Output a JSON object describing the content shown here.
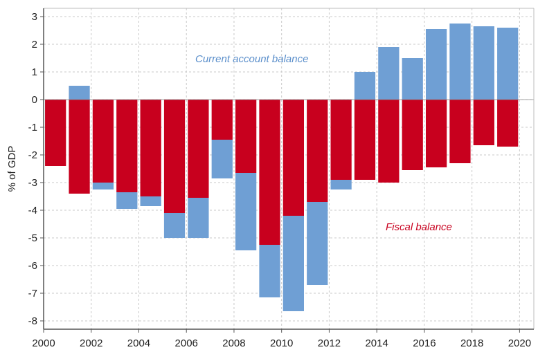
{
  "chart_data": {
    "type": "bar",
    "stacked": true,
    "x": [
      2000,
      2001,
      2002,
      2003,
      2004,
      2005,
      2006,
      2007,
      2008,
      2009,
      2010,
      2011,
      2012,
      2013,
      2014,
      2015,
      2016,
      2017,
      2018,
      2019
    ],
    "series": [
      {
        "name": "Fiscal balance",
        "color": "#c8001e",
        "values": [
          -2.4,
          -3.4,
          -3.0,
          -3.35,
          -3.5,
          -4.1,
          -3.55,
          -1.45,
          -2.65,
          -5.25,
          -4.2,
          -3.7,
          -2.9,
          -2.9,
          -3.0,
          -2.55,
          -2.45,
          -2.3,
          -1.65,
          -1.7
        ]
      },
      {
        "name": "Current account balance",
        "color": "#6f9fd4",
        "values": [
          0.0,
          0.5,
          -0.25,
          -0.6,
          -0.35,
          -0.9,
          -1.45,
          -1.4,
          -2.8,
          -1.9,
          -3.45,
          -3.0,
          -0.35,
          1.0,
          1.9,
          1.5,
          2.55,
          2.75,
          2.65,
          2.6
        ]
      }
    ],
    "xlabel": "",
    "ylabel": "% of GDP",
    "ylim": [
      -8.3,
      3.3
    ],
    "xlim": [
      2000,
      2020.6
    ],
    "yticks": [
      3,
      2,
      1,
      0,
      -1,
      -2,
      -3,
      -4,
      -5,
      -6,
      -7,
      -8
    ],
    "xticks": [
      2000,
      2002,
      2004,
      2006,
      2008,
      2010,
      2012,
      2014,
      2016,
      2018,
      2020
    ],
    "grid": true,
    "legend": "none",
    "annotations": [
      {
        "text": "Current account balance",
        "series": "Current account balance"
      },
      {
        "text": "Fiscal balance",
        "series": "Fiscal balance"
      }
    ]
  }
}
